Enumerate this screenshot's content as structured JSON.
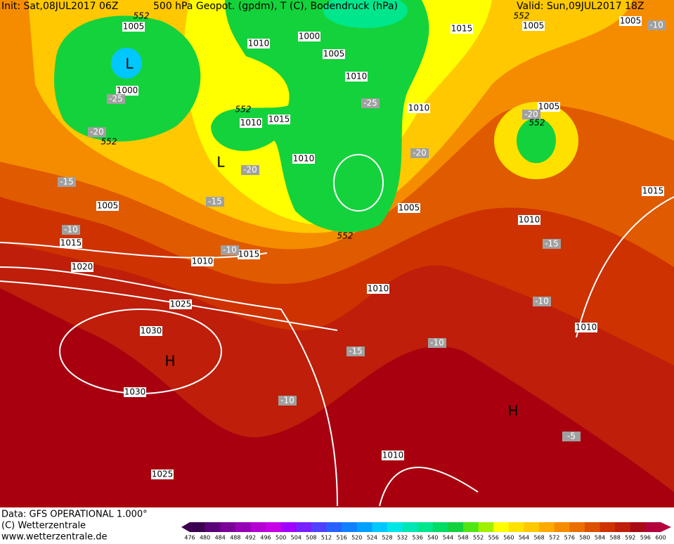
{
  "header": {
    "init": "Init: Sat,08JUL2017 06Z",
    "title": "500 hPa Geopot. (gpdm), T (C), Bodendruck (hPa)",
    "valid": "Valid: Sun,09JUL2017 18Z"
  },
  "footer": {
    "data": "Data: GFS OPERATIONAL 1.000°",
    "copyright": "(C) Wetterzentrale",
    "url": "www.wetterzentrale.de"
  },
  "scale": {
    "labels": [
      476,
      480,
      484,
      488,
      492,
      496,
      500,
      504,
      508,
      512,
      516,
      520,
      524,
      528,
      532,
      536,
      540,
      544,
      548,
      552,
      556,
      560,
      564,
      568,
      572,
      576,
      580,
      584,
      588,
      592,
      596,
      600
    ],
    "colors": [
      "#3c0050",
      "#5a0078",
      "#7a0096",
      "#9600b4",
      "#b400d2",
      "#c800e6",
      "#a000ff",
      "#7820ff",
      "#5040ff",
      "#2860ff",
      "#1080ff",
      "#00a0ff",
      "#00c8ff",
      "#00e6e6",
      "#00e6b4",
      "#00e68c",
      "#00dc64",
      "#14d23c",
      "#50e614",
      "#a0f000",
      "#ffff00",
      "#ffe100",
      "#ffc800",
      "#ffaa00",
      "#f58c00",
      "#eb6e00",
      "#dc5000",
      "#cd3200",
      "#be1e0a",
      "#aa0a14",
      "#b4003c"
    ]
  },
  "labels": {
    "pressure": [
      1005,
      1000,
      1010,
      1005,
      1015,
      1005,
      1005,
      1000,
      1010,
      1010,
      1005,
      1015,
      1010,
      1010,
      1005,
      1005,
      1010,
      1015,
      1015,
      1010,
      1015,
      1020,
      1025,
      1010,
      1030,
      1010,
      1030,
      1010,
      1025
    ],
    "temperature": [
      -25,
      -25,
      -20,
      -20,
      -20,
      -20,
      -15,
      -15,
      -15,
      -10,
      -10,
      -10,
      -15,
      -10,
      -10,
      -5,
      -10
    ],
    "height": [
      552,
      552,
      552,
      552,
      552,
      552
    ],
    "centers": [
      "L",
      "L",
      "H",
      "H"
    ]
  }
}
